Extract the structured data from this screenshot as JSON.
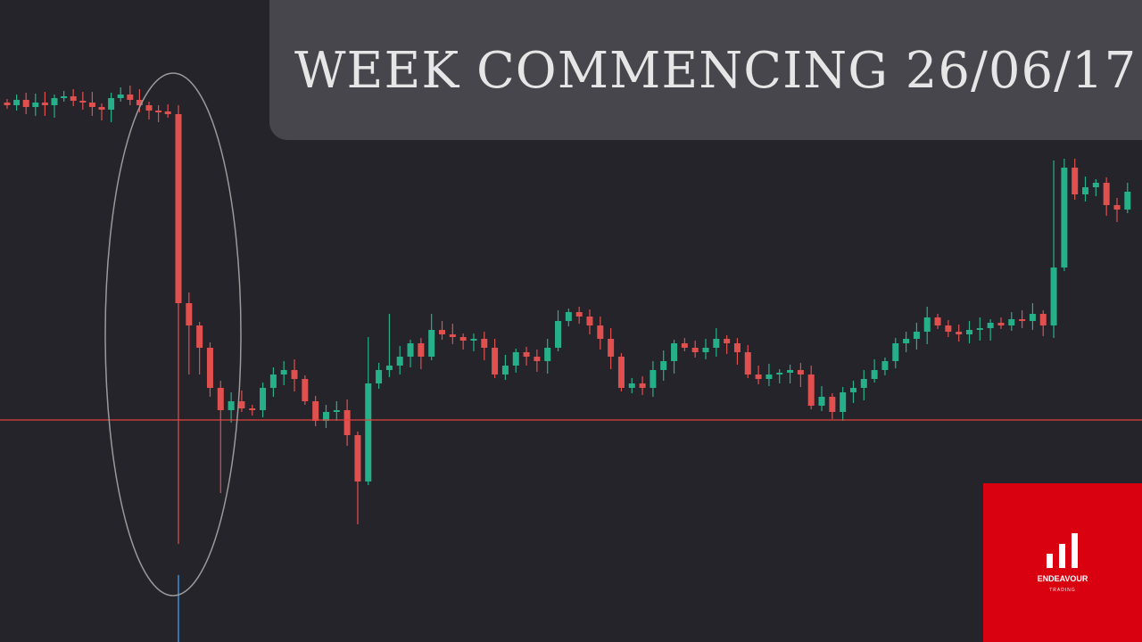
{
  "header": {
    "title": "WEEK COMMENCING 26/06/17"
  },
  "logo": {
    "name": "ENDEAVOUR",
    "tagline": "TRADING"
  }
}
